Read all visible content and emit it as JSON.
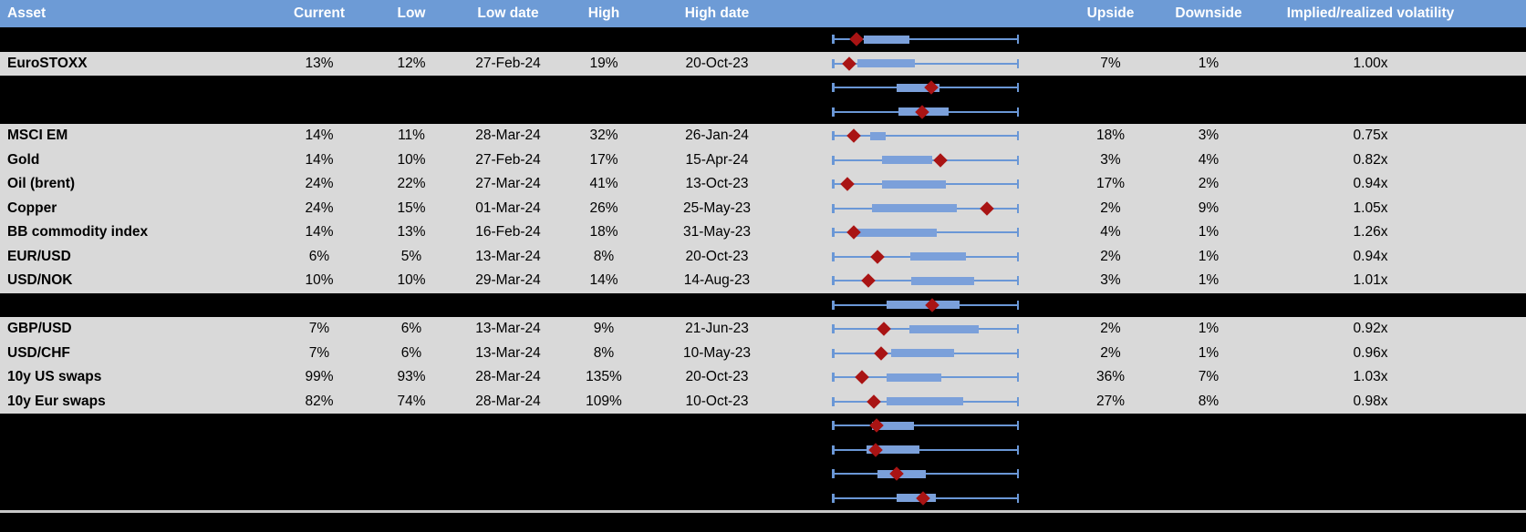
{
  "colors": {
    "header_bg": "#6D9BD6",
    "header_text": "#FFFFFF",
    "row_bg": "#D9D9D9",
    "hidden_row_bg": "#000000",
    "box_fill": "#7BA0DA",
    "whisker": "#6A97D6",
    "marker": "#A91414",
    "separator_line": "#C8C8C8"
  },
  "header": {
    "asset": "Asset",
    "current": "Current",
    "low": "Low",
    "low_date": "Low date",
    "high": "High",
    "high_date": "High date",
    "upside": "Upside",
    "downside": "Downside",
    "ivrv": "Implied/realized volatility"
  },
  "rows": [
    {
      "type": "hidden",
      "plot": {
        "box_start": 17.3,
        "box_end": 41.3,
        "marker": 13.4
      }
    },
    {
      "type": "data",
      "asset": "EuroSTOXX",
      "current": "13%",
      "low": "12%",
      "low_date": "27-Feb-24",
      "high": "19%",
      "high_date": "20-Oct-23",
      "upside": "7%",
      "downside": "1%",
      "ivrv": "1.00x",
      "plot": {
        "box_start": 13.9,
        "box_end": 44.2,
        "marker": 9.4
      }
    },
    {
      "type": "hidden",
      "plot": {
        "box_start": 34.4,
        "box_end": 57.4,
        "marker": 53.0
      }
    },
    {
      "type": "hidden",
      "plot": {
        "box_start": 35.4,
        "box_end": 62.3,
        "marker": 48.1
      }
    },
    {
      "type": "data",
      "asset": "MSCI EM",
      "current": "14%",
      "low": "11%",
      "low_date": "28-Mar-24",
      "high": "32%",
      "high_date": "26-Jan-24",
      "upside": "18%",
      "downside": "3%",
      "ivrv": "0.75x",
      "plot": {
        "box_start": 20.7,
        "box_end": 29.0,
        "marker": 11.9
      }
    },
    {
      "type": "data",
      "asset": "Gold",
      "current": "14%",
      "low": "10%",
      "low_date": "27-Feb-24",
      "high": "17%",
      "high_date": "15-Apr-24",
      "upside": "3%",
      "downside": "4%",
      "ivrv": "0.82x",
      "plot": {
        "box_start": 26.6,
        "box_end": 53.5,
        "marker": 57.9
      }
    },
    {
      "type": "data",
      "asset": "Oil (brent)",
      "current": "24%",
      "low": "22%",
      "low_date": "27-Mar-24",
      "high": "41%",
      "high_date": "13-Oct-23",
      "upside": "17%",
      "downside": "2%",
      "ivrv": "0.94x",
      "plot": {
        "box_start": 26.6,
        "box_end": 60.8,
        "marker": 8.5
      }
    },
    {
      "type": "data",
      "asset": "Copper",
      "current": "24%",
      "low": "15%",
      "low_date": "01-Mar-24",
      "high": "26%",
      "high_date": "25-May-23",
      "upside": "2%",
      "downside": "9%",
      "ivrv": "1.05x",
      "plot": {
        "box_start": 21.7,
        "box_end": 66.7,
        "marker": 82.8
      }
    },
    {
      "type": "data",
      "asset": "BB commodity index",
      "current": "14%",
      "low": "13%",
      "low_date": "16-Feb-24",
      "high": "18%",
      "high_date": "31-May-23",
      "upside": "4%",
      "downside": "1%",
      "ivrv": "1.26x",
      "plot": {
        "box_start": 10.9,
        "box_end": 55.9,
        "marker": 11.9
      }
    },
    {
      "type": "data",
      "asset": "EUR/USD",
      "current": "6%",
      "low": "5%",
      "low_date": "13-Mar-24",
      "high": "8%",
      "high_date": "20-Oct-23",
      "upside": "2%",
      "downside": "1%",
      "ivrv": "0.94x",
      "plot": {
        "box_start": 41.8,
        "box_end": 71.6,
        "marker": 24.6
      }
    },
    {
      "type": "data",
      "asset": "USD/NOK",
      "current": "10%",
      "low": "10%",
      "low_date": "29-Mar-24",
      "high": "14%",
      "high_date": "14-Aug-23",
      "upside": "3%",
      "downside": "1%",
      "ivrv": "1.01x",
      "plot": {
        "box_start": 42.2,
        "box_end": 76.1,
        "marker": 19.4
      }
    },
    {
      "type": "hidden",
      "plot": {
        "box_start": 29.5,
        "box_end": 68.2,
        "marker": 53.5
      }
    },
    {
      "type": "data",
      "asset": "GBP/USD",
      "current": "7%",
      "low": "6%",
      "low_date": "13-Mar-24",
      "high": "9%",
      "high_date": "21-Jun-23",
      "upside": "2%",
      "downside": "1%",
      "ivrv": "0.92x",
      "plot": {
        "box_start": 41.3,
        "box_end": 78.6,
        "marker": 28.0
      }
    },
    {
      "type": "data",
      "asset": "USD/CHF",
      "current": "7%",
      "low": "6%",
      "low_date": "13-Mar-24",
      "high": "8%",
      "high_date": "10-May-23",
      "upside": "2%",
      "downside": "1%",
      "ivrv": "0.96x",
      "plot": {
        "box_start": 31.5,
        "box_end": 65.3,
        "marker": 26.1
      }
    },
    {
      "type": "data",
      "asset": "10y US swaps",
      "current": "99%",
      "low": "93%",
      "low_date": "28-Mar-24",
      "high": "135%",
      "high_date": "20-Oct-23",
      "upside": "36%",
      "downside": "7%",
      "ivrv": "1.03x",
      "plot": {
        "box_start": 29.5,
        "box_end": 58.5,
        "marker": 16.3
      }
    },
    {
      "type": "data",
      "asset": "10y Eur swaps",
      "current": "82%",
      "low": "74%",
      "low_date": "28-Mar-24",
      "high": "109%",
      "high_date": "10-Oct-23",
      "upside": "27%",
      "downside": "8%",
      "ivrv": "0.98x",
      "plot": {
        "box_start": 29.5,
        "box_end": 70.1,
        "marker": 22.2
      }
    },
    {
      "type": "hidden",
      "plot": {
        "box_start": 21.7,
        "box_end": 43.7,
        "marker": 24.1
      }
    },
    {
      "type": "hidden",
      "plot": {
        "box_start": 18.3,
        "box_end": 46.7,
        "marker": 23.2
      }
    },
    {
      "type": "hidden",
      "plot": {
        "box_start": 24.6,
        "box_end": 50.1,
        "marker": 34.4
      }
    },
    {
      "type": "hidden",
      "plot": {
        "box_start": 34.4,
        "box_end": 55.5,
        "marker": 49.0
      }
    }
  ]
}
